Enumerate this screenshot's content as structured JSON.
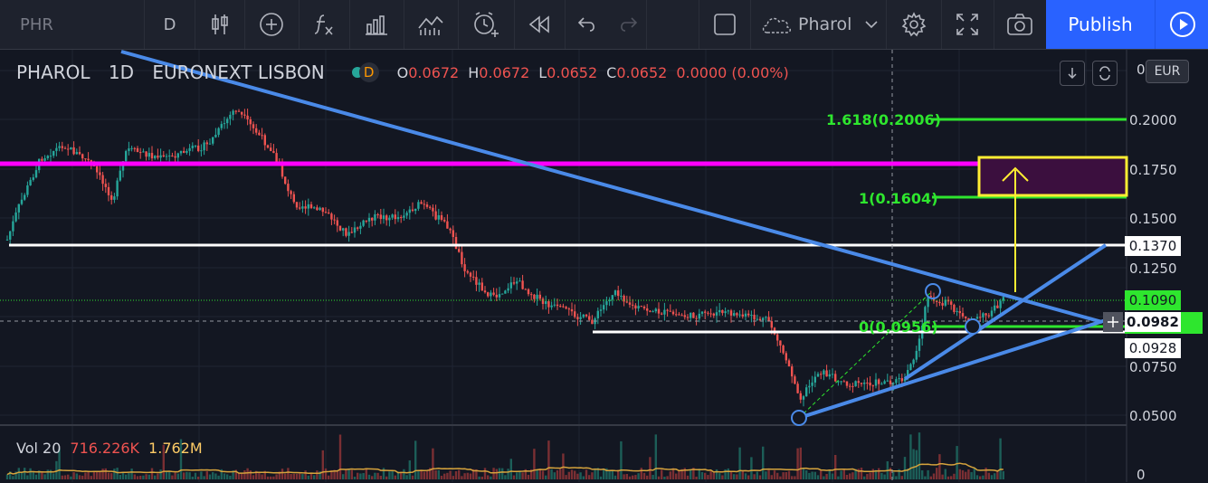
{
  "toolbar": {
    "symbol": "PHR",
    "interval": "D",
    "template_name": "Pharol",
    "publish_label": "Publish"
  },
  "legend": {
    "name": "PHAROL",
    "interval": "1D",
    "exchange": "EURONEXT LISBON",
    "mode_badge": "D",
    "ohlc": {
      "o_label": "O",
      "o_value": "0.0672",
      "h_label": "H",
      "h_value": "0.0672",
      "l_label": "L",
      "l_value": "0.0652",
      "c_label": "C",
      "c_value": "0.0652",
      "change": "0.0000 (0.00%)"
    }
  },
  "volume_legend": {
    "label": "Vol 20",
    "volume": "716.226K",
    "ma": "1.762M"
  },
  "price_axis": {
    "currency": "EUR",
    "top_tick": "0",
    "ticks": [
      "0.2000",
      "0.1750",
      "0.1500",
      "0.1250",
      "0.0750",
      "0.0500"
    ],
    "volume_tick": "0"
  },
  "price_labels": {
    "level_white": "0.1370",
    "last_green": "0.1090",
    "crosshair": "0.0982",
    "level_white_low": "0.0928"
  },
  "fibonacci": {
    "level_1618": "1.618(0.2006)",
    "level_1": "1(0.1604)",
    "level_0": "0(0.0956)"
  },
  "colors": {
    "background": "#131722",
    "toolbar": "#1e222d",
    "accent_blue": "#2962ff",
    "trendline": "#4a8ae8",
    "fib_green": "#2ee62e",
    "magenta_line": "#ff00ff",
    "target_yellow": "#ffee33",
    "up_candle": "#26a69a",
    "down_candle": "#ef5350"
  },
  "icons": [
    "candles-icon",
    "add-indicator-icon",
    "fx-icon",
    "templates-icon",
    "compare-icon",
    "alert-icon",
    "replay-icon",
    "undo-icon",
    "redo-icon",
    "layout-icon",
    "cloud-icon",
    "settings-icon",
    "fullscreen-icon",
    "camera-icon",
    "play-icon"
  ]
}
